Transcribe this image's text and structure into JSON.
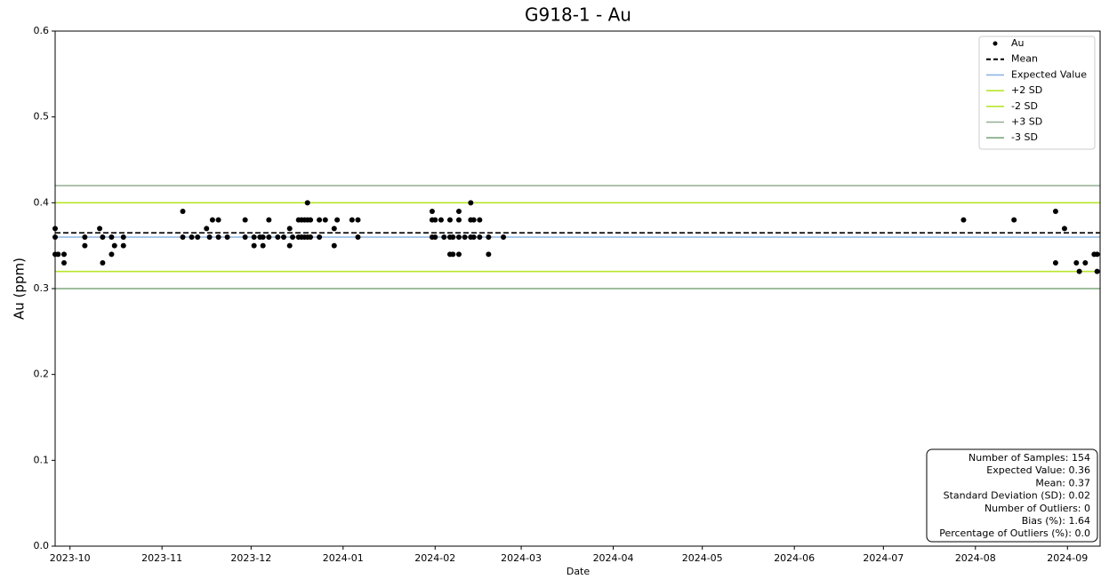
{
  "chart_data": {
    "type": "scatter",
    "title": "G918-1 - Au",
    "x_label": "Date",
    "y_label": "Au (ppm)",
    "xlim": [
      "2023-09-26",
      "2024-09-12"
    ],
    "xticks": [
      "2023-10",
      "2023-11",
      "2023-12",
      "2024-01",
      "2024-02",
      "2024-03",
      "2024-04",
      "2024-05",
      "2024-06",
      "2024-07",
      "2024-08",
      "2024-09"
    ],
    "ylim": [
      0,
      0.6
    ],
    "yticks": [
      {
        "value": 0,
        "label": "0.0"
      },
      0.1,
      0.2,
      0.3,
      0.4,
      0.5,
      0.6
    ],
    "legend": "upper right",
    "x": [
      "2023-09-26",
      "2023-09-26",
      "2023-09-26",
      "2023-09-27",
      "2023-09-29",
      "2023-09-29",
      "2023-10-06",
      "2023-10-06",
      "2023-10-11",
      "2023-10-12",
      "2023-10-12",
      "2023-10-15",
      "2023-10-15",
      "2023-10-16",
      "2023-10-19",
      "2023-10-19",
      "2023-11-08",
      "2023-11-08",
      "2023-11-11",
      "2023-11-13",
      "2023-11-16",
      "2023-11-17",
      "2023-11-18",
      "2023-11-20",
      "2023-11-20",
      "2023-11-23",
      "2023-11-29",
      "2023-11-29",
      "2023-12-02",
      "2023-12-02",
      "2023-12-04",
      "2023-12-05",
      "2023-12-05",
      "2023-12-07",
      "2023-12-07",
      "2023-12-10",
      "2023-12-12",
      "2023-12-14",
      "2023-12-14",
      "2023-12-15",
      "2023-12-17",
      "2023-12-17",
      "2023-12-18",
      "2023-12-18",
      "2023-12-19",
      "2023-12-19",
      "2023-12-20",
      "2023-12-20",
      "2023-12-20",
      "2023-12-21",
      "2023-12-21",
      "2023-12-24",
      "2023-12-24",
      "2023-12-26",
      "2023-12-29",
      "2023-12-29",
      "2023-12-30",
      "2024-01-04",
      "2024-01-06",
      "2024-01-06",
      "2024-01-31",
      "2024-01-31",
      "2024-01-31",
      "2024-02-01",
      "2024-02-01",
      "2024-02-03",
      "2024-02-04",
      "2024-02-06",
      "2024-02-06",
      "2024-02-06",
      "2024-02-07",
      "2024-02-07",
      "2024-02-09",
      "2024-02-09",
      "2024-02-09",
      "2024-02-09",
      "2024-02-11",
      "2024-02-13",
      "2024-02-13",
      "2024-02-13",
      "2024-02-14",
      "2024-02-14",
      "2024-02-16",
      "2024-02-16",
      "2024-02-19",
      "2024-02-19",
      "2024-02-24",
      "2024-07-28",
      "2024-08-14",
      "2024-08-28",
      "2024-08-28",
      "2024-08-31",
      "2024-09-04",
      "2024-09-05",
      "2024-09-07",
      "2024-09-10",
      "2024-09-11",
      "2024-09-11"
    ],
    "series": [
      {
        "name": "Au",
        "color": "#000000",
        "values": [
          0.37,
          0.36,
          0.34,
          0.34,
          0.34,
          0.33,
          0.36,
          0.35,
          0.37,
          0.33,
          0.36,
          0.34,
          0.36,
          0.35,
          0.36,
          0.35,
          0.39,
          0.36,
          0.36,
          0.36,
          0.37,
          0.36,
          0.38,
          0.38,
          0.36,
          0.36,
          0.38,
          0.36,
          0.35,
          0.36,
          0.36,
          0.35,
          0.36,
          0.38,
          0.36,
          0.36,
          0.36,
          0.37,
          0.35,
          0.36,
          0.38,
          0.36,
          0.38,
          0.36,
          0.38,
          0.36,
          0.4,
          0.38,
          0.36,
          0.38,
          0.36,
          0.38,
          0.36,
          0.38,
          0.37,
          0.35,
          0.38,
          0.38,
          0.38,
          0.36,
          0.39,
          0.38,
          0.36,
          0.38,
          0.36,
          0.38,
          0.36,
          0.38,
          0.36,
          0.34,
          0.34,
          0.36,
          0.39,
          0.38,
          0.34,
          0.36,
          0.36,
          0.4,
          0.38,
          0.36,
          0.38,
          0.36,
          0.38,
          0.36,
          0.34,
          0.36,
          0.36,
          0.38,
          0.38,
          0.39,
          0.33,
          0.37,
          0.33,
          0.32,
          0.33,
          0.34,
          0.34,
          0.32
        ]
      }
    ],
    "reference_lines": [
      {
        "name": "Mean",
        "value": 0.365,
        "color": "#000000",
        "dashed": true
      },
      {
        "name": "Expected Value",
        "value": 0.36,
        "color": "#8db6e2",
        "dashed": false
      },
      {
        "name": "+2 SD",
        "value": 0.4,
        "color": "#b8e62a",
        "dashed": false
      },
      {
        "name": "-2 SD",
        "value": 0.32,
        "color": "#b8e62a",
        "dashed": false
      },
      {
        "name": "+3 SD",
        "value": 0.42,
        "color": "#94ad94",
        "dashed": false
      },
      {
        "name": "-3 SD",
        "value": 0.3,
        "color": "#7fa87f",
        "dashed": false
      }
    ],
    "stats_box": [
      "Number of Samples: 154",
      "Expected Value: 0.36",
      "Mean: 0.37",
      "Standard Deviation (SD): 0.02",
      "Number of Outliers: 0",
      "Bias (%): 1.64",
      "Percentage of Outliers (%): 0.0"
    ]
  }
}
